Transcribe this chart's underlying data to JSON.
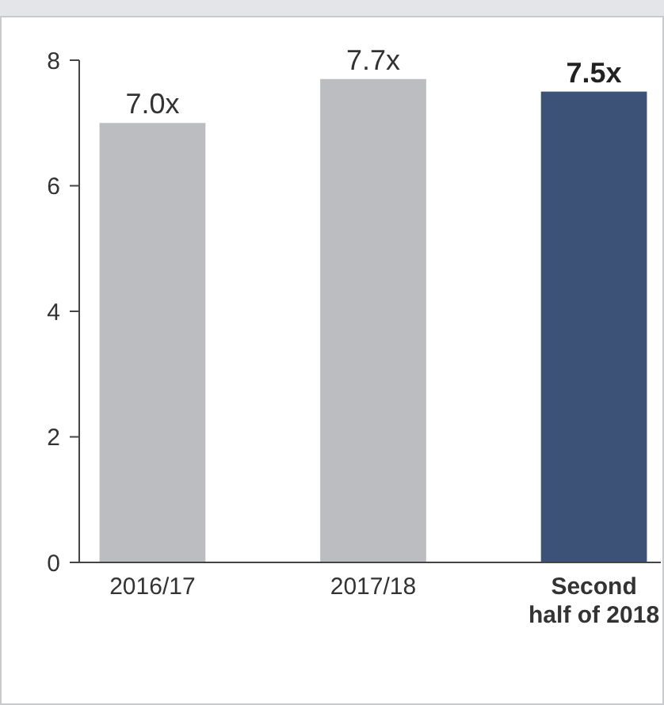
{
  "chart_data": {
    "type": "bar",
    "categories": [
      "2016/17",
      "2017/18",
      "Second half of 2018"
    ],
    "values": [
      7.0,
      7.7,
      7.5
    ],
    "colors": [
      "#bcbdc0",
      "#bcbdc0",
      "#3c5377"
    ],
    "value_labels": [
      "7.0x",
      "7.7x",
      "7.5x"
    ],
    "ylim": [
      0,
      8
    ],
    "yticks": [
      0,
      2,
      4,
      6,
      8
    ]
  }
}
